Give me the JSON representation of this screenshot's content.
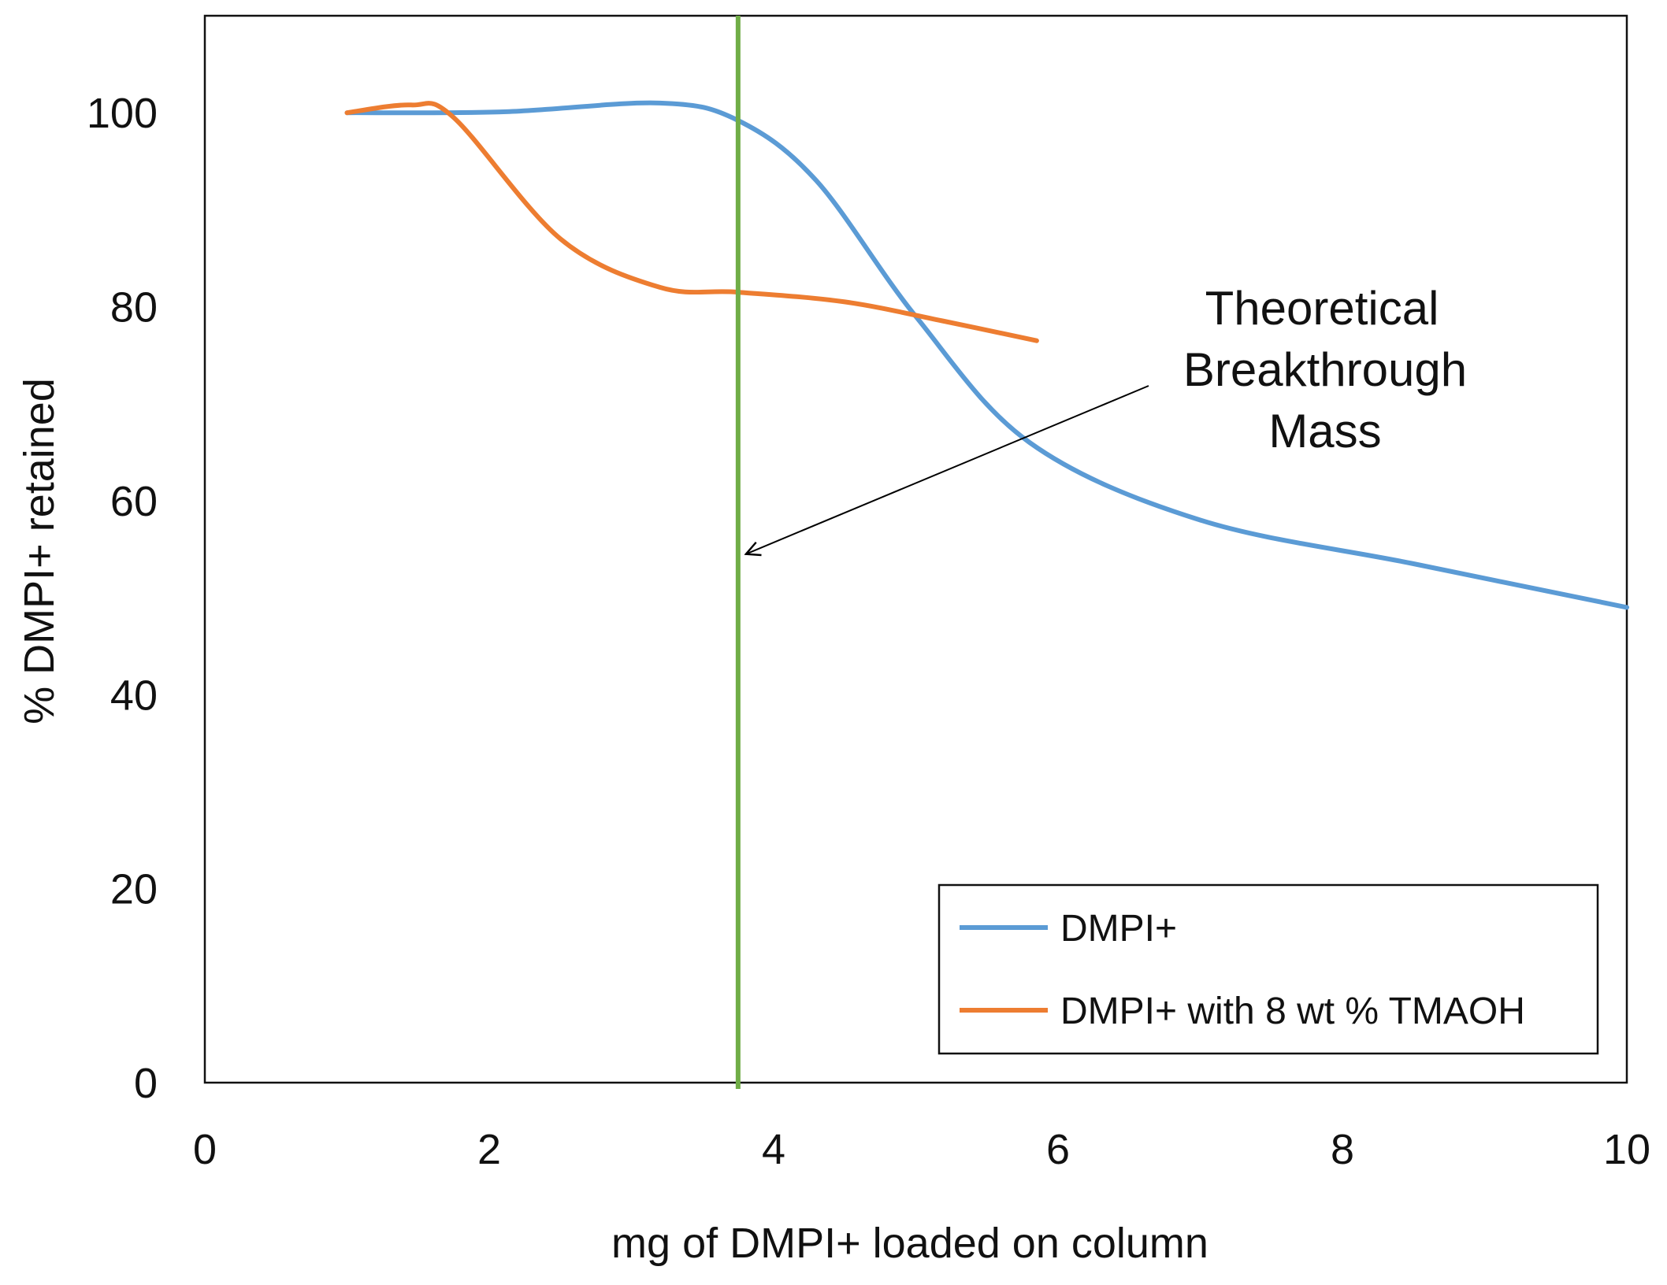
{
  "chart_data": {
    "type": "line",
    "title": "",
    "xlabel": "mg of DMPI+ loaded on column",
    "ylabel": "% DMPI+ retained",
    "xlim": [
      0,
      10
    ],
    "ylim": [
      0,
      110
    ],
    "x_ticks": [
      0,
      2,
      4,
      6,
      8,
      10
    ],
    "y_ticks": [
      0,
      20,
      40,
      60,
      80,
      100
    ],
    "grid": false,
    "legend_position": "bottom-right",
    "series": [
      {
        "name": "DMPI+",
        "color": "#5b9bd5",
        "x": [
          1.0,
          2.1,
          3.2,
          3.75,
          4.3,
          5.0,
          5.8,
          7.0,
          8.5,
          10.0
        ],
        "y": [
          100.0,
          100.1,
          101.0,
          99.2,
          93.0,
          79.0,
          66.0,
          58.0,
          53.5,
          49.0
        ]
      },
      {
        "name": "DMPI+ with 8 wt % TMAOH",
        "color": "#ed7d31",
        "x": [
          1.0,
          1.45,
          1.75,
          2.5,
          3.2,
          3.75,
          4.5,
          5.2,
          5.85
        ],
        "y": [
          100.0,
          100.8,
          99.5,
          87.0,
          82.0,
          81.5,
          80.5,
          78.5,
          76.5
        ]
      }
    ],
    "reference_line": {
      "axis": "x",
      "value": 3.75,
      "color": "#70ad47"
    },
    "annotation": {
      "lines": [
        "Theoretical",
        "Breakthrough",
        "Mass"
      ],
      "arrow_target": [
        3.75,
        54.5
      ],
      "arrow_color": "#000000"
    }
  }
}
